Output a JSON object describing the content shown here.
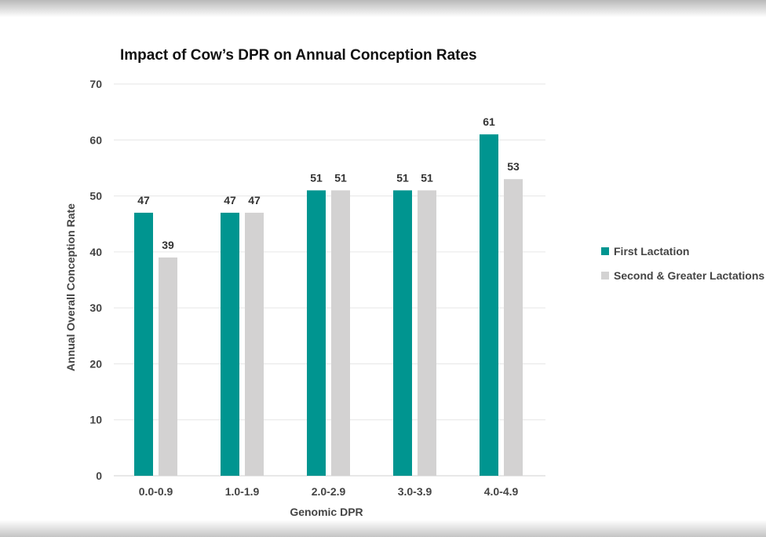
{
  "chart_data": {
    "type": "bar",
    "title": "Impact of Cow’s DPR on Annual Conception Rates",
    "xlabel": "Genomic DPR",
    "ylabel": "Annual Overall Conception Rate",
    "categories": [
      "0.0-0.9",
      "1.0-1.9",
      "2.0-2.9",
      "3.0-3.9",
      "4.0-4.9"
    ],
    "series": [
      {
        "name": "First Lactation",
        "color": "#009590",
        "values": [
          47,
          47,
          51,
          51,
          61
        ]
      },
      {
        "name": "Second & Greater Lactations",
        "color": "#d3d2d2",
        "values": [
          39,
          47,
          51,
          51,
          53
        ]
      }
    ],
    "yticks": [
      0,
      10,
      20,
      30,
      40,
      50,
      60,
      70
    ],
    "ylim": [
      0,
      70
    ],
    "grid": true,
    "legend_position": "right",
    "data_labels": true
  }
}
